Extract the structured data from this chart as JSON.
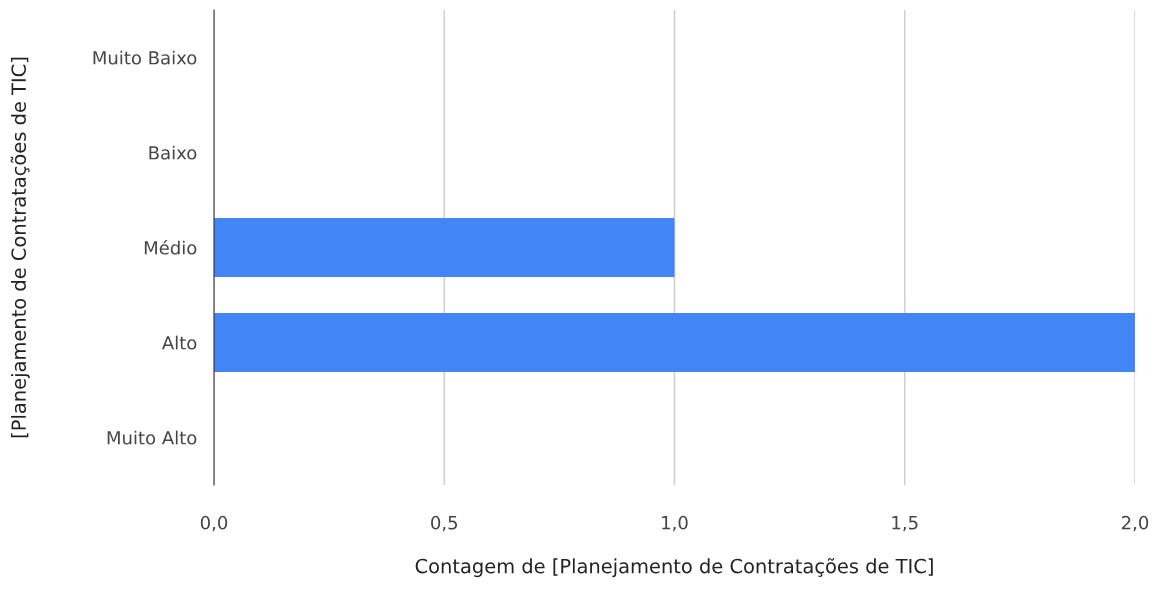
{
  "chart_data": {
    "type": "bar",
    "orientation": "horizontal",
    "categories": [
      "Muito Baixo",
      "Baixo",
      "Médio",
      "Alto",
      "Muito Alto"
    ],
    "series": [
      {
        "color": "#4285f4",
        "values": [
          0,
          0,
          1,
          2,
          0
        ]
      }
    ],
    "xlabel": "Contagem de [Planejamento de Contratações de TIC]",
    "ylabel": "[Planejamento de Contratações de TIC]",
    "xlim": [
      0,
      2
    ],
    "xticks": [
      {
        "value": 0,
        "label": "0,0"
      },
      {
        "value": 0.5,
        "label": "0,5"
      },
      {
        "value": 1,
        "label": "1,0"
      },
      {
        "value": 1.5,
        "label": "1,5"
      },
      {
        "value": 2,
        "label": "2,0"
      }
    ],
    "grid": "x"
  }
}
